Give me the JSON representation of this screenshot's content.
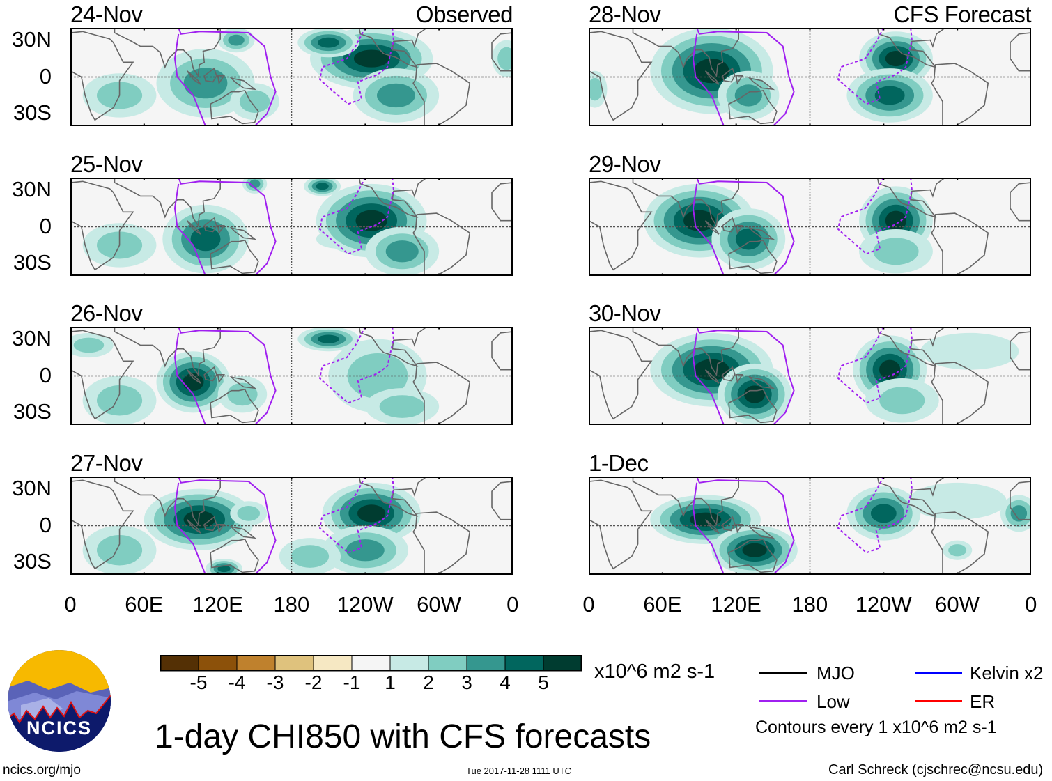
{
  "panels": [
    {
      "date": "24-Nov",
      "tag": "Observed",
      "column": "left"
    },
    {
      "date": "25-Nov",
      "tag": "",
      "column": "left"
    },
    {
      "date": "26-Nov",
      "tag": "",
      "column": "left"
    },
    {
      "date": "27-Nov",
      "tag": "",
      "column": "left"
    },
    {
      "date": "28-Nov",
      "tag": "CFS Forecast",
      "column": "right"
    },
    {
      "date": "29-Nov",
      "tag": "",
      "column": "right"
    },
    {
      "date": "30-Nov",
      "tag": "",
      "column": "right"
    },
    {
      "date": "1-Dec",
      "tag": "",
      "column": "right"
    }
  ],
  "lat_labels": [
    "30N",
    "0",
    "30S"
  ],
  "lon_labels": [
    "0",
    "60E",
    "120E",
    "180",
    "120W",
    "60W",
    "0"
  ],
  "colorbar": {
    "levels": [
      "-5",
      "-4",
      "-3",
      "-2",
      "-1",
      "1",
      "2",
      "3",
      "4",
      "5"
    ],
    "colors": [
      "#543005",
      "#8c510a",
      "#bf812d",
      "#dfc27d",
      "#f6e8c3",
      "#f5f5f5",
      "#c7eae5",
      "#80cdc1",
      "#35978f",
      "#01665e",
      "#003c30"
    ],
    "units": "x10^6 m2 s-1"
  },
  "legend": {
    "items": [
      {
        "label": "MJO",
        "color": "#000000"
      },
      {
        "label": "Low",
        "color": "#a020f0"
      },
      {
        "label": "Kelvin x2",
        "color": "#0000ff"
      },
      {
        "label": "ER",
        "color": "#ff0000"
      }
    ],
    "contours_note": "Contours every 1 x10^6 m2 s-1"
  },
  "title": "1-day CHI850 with CFS forecasts",
  "logo_text": "NCICS",
  "footer": {
    "url": "ncics.org/mjo",
    "timestamp": "Tue 2017-11-28 1111 UTC",
    "author": "Carl Schreck (cjschrec@ncsu.edu)"
  }
}
